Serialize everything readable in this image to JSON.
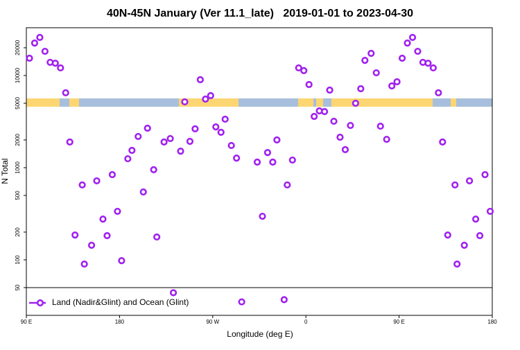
{
  "chart_data": {
    "type": "scatter",
    "title": "40N-45N January (Ver 11.1_late)   2019-01-01 to 2023-04-30",
    "x_label": "Longitude (deg E)",
    "y_label": "N Total",
    "y_scale": "log",
    "xlim": [
      90,
      540
    ],
    "xticks": [
      {
        "value": 90,
        "label": "90 E"
      },
      180,
      {
        "value": 270,
        "label": "90 W"
      },
      {
        "value": 360,
        "label": "0"
      },
      {
        "value": 450,
        "label": "90 E"
      },
      {
        "value": 540,
        "label": "180"
      }
    ],
    "ylim": [
      25,
      33000
    ],
    "yticks": [
      50,
      100,
      200,
      500,
      1000,
      2000,
      5000,
      10000,
      20000
    ],
    "legend": "bottom-left",
    "series": [
      {
        "name": "Land (Nadir&Glint) and Ocean (Glint)",
        "color": "#a020f0",
        "x": [
          93,
          98,
          103,
          108,
          113,
          118,
          123,
          128,
          132,
          137,
          144,
          146,
          153,
          158,
          164,
          168,
          173,
          178,
          182,
          188,
          192,
          198,
          203,
          207,
          213,
          216,
          223,
          229,
          232,
          239,
          243,
          248,
          253,
          258,
          263,
          268,
          273,
          278,
          282,
          288,
          293,
          298,
          313,
          318,
          323,
          328,
          332,
          339,
          342,
          347,
          353,
          358,
          363,
          368,
          373,
          378,
          383,
          387,
          393,
          398,
          403,
          408,
          413,
          417,
          423,
          428,
          432,
          438,
          443,
          448,
          453,
          458,
          463,
          468,
          473,
          478,
          483,
          488,
          492,
          497,
          504,
          506,
          513,
          518,
          524,
          528,
          533,
          538
        ],
        "values": [
          15400,
          22500,
          25900,
          18300,
          13900,
          13600,
          12100,
          6500,
          1900,
          186,
          650,
          90,
          144,
          720,
          277,
          183,
          840,
          336,
          98,
          1250,
          1540,
          2180,
          545,
          2680,
          950,
          177,
          1900,
          2070,
          44,
          1510,
          5180,
          1930,
          2640,
          9010,
          5550,
          6050,
          2770,
          2420,
          3360,
          1740,
          1270,
          35,
          1150,
          297,
          1460,
          1150,
          2000,
          37,
          650,
          1210,
          12100,
          11300,
          7980,
          3600,
          4130,
          4060,
          6950,
          3190,
          2140,
          1570,
          2870,
          5000,
          7190,
          14600,
          17400,
          10700,
          2820,
          2030,
          7710,
          8550,
          15400,
          22500,
          25900,
          18300,
          13900,
          13600,
          12100,
          6500,
          1900,
          186,
          650,
          90,
          144,
          720,
          277,
          183,
          840,
          336
        ]
      }
    ]
  }
}
